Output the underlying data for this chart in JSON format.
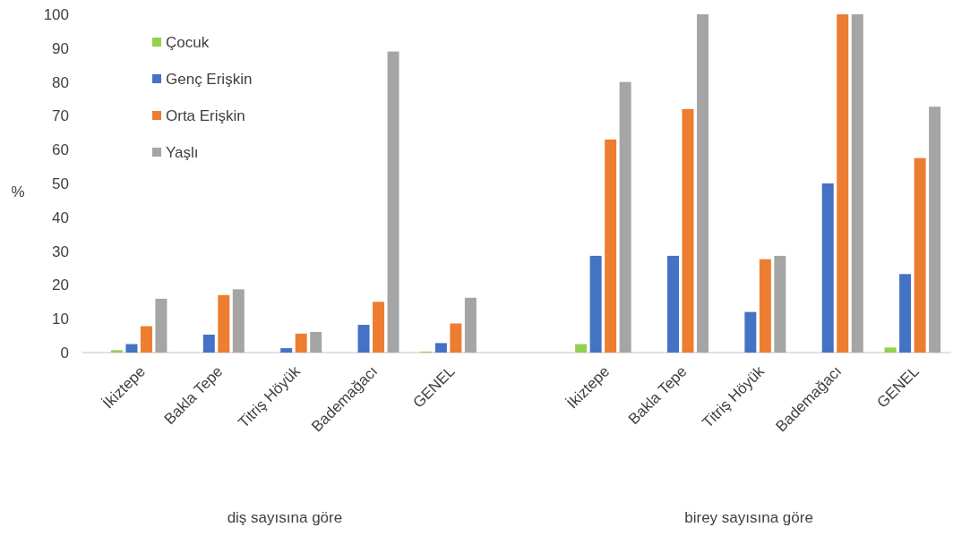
{
  "chart_data": {
    "type": "bar",
    "ylabel": "%",
    "categories": [
      "İkiztepe",
      "Bakla Tepe",
      "Titriş Höyük",
      "Bademağacı",
      "GENEL",
      null,
      "İkiztepe",
      "Bakla Tepe",
      "Titriş Höyük",
      "Bademağacı",
      "GENEL"
    ],
    "series": [
      {
        "name": "Çocuk",
        "color": "#92d050",
        "values": [
          0.7,
          0,
          0,
          0,
          0.3,
          null,
          2.5,
          0,
          0,
          0,
          1.5
        ]
      },
      {
        "name": "Genç Erişkin",
        "color": "#4472c4",
        "values": [
          2.5,
          5.3,
          1.3,
          8.2,
          2.8,
          null,
          28.6,
          28.6,
          12,
          50,
          23.2
        ]
      },
      {
        "name": "Orta Erişkin",
        "color": "#ed7d31",
        "values": [
          7.8,
          17,
          5.6,
          15,
          8.6,
          null,
          63,
          72,
          27.6,
          100,
          57.5
        ]
      },
      {
        "name": "Yaşlı",
        "color": "#a5a5a5",
        "values": [
          15.9,
          18.7,
          6.1,
          89,
          16.2,
          null,
          80,
          100,
          28.6,
          100,
          72.7
        ]
      }
    ],
    "ylim": [
      0,
      100
    ],
    "yticks": [
      0,
      10,
      20,
      30,
      40,
      50,
      60,
      70,
      80,
      90,
      100
    ],
    "legend": "top left",
    "annotations": [
      "diş sayısına göre",
      "birey sayısına göre"
    ]
  }
}
